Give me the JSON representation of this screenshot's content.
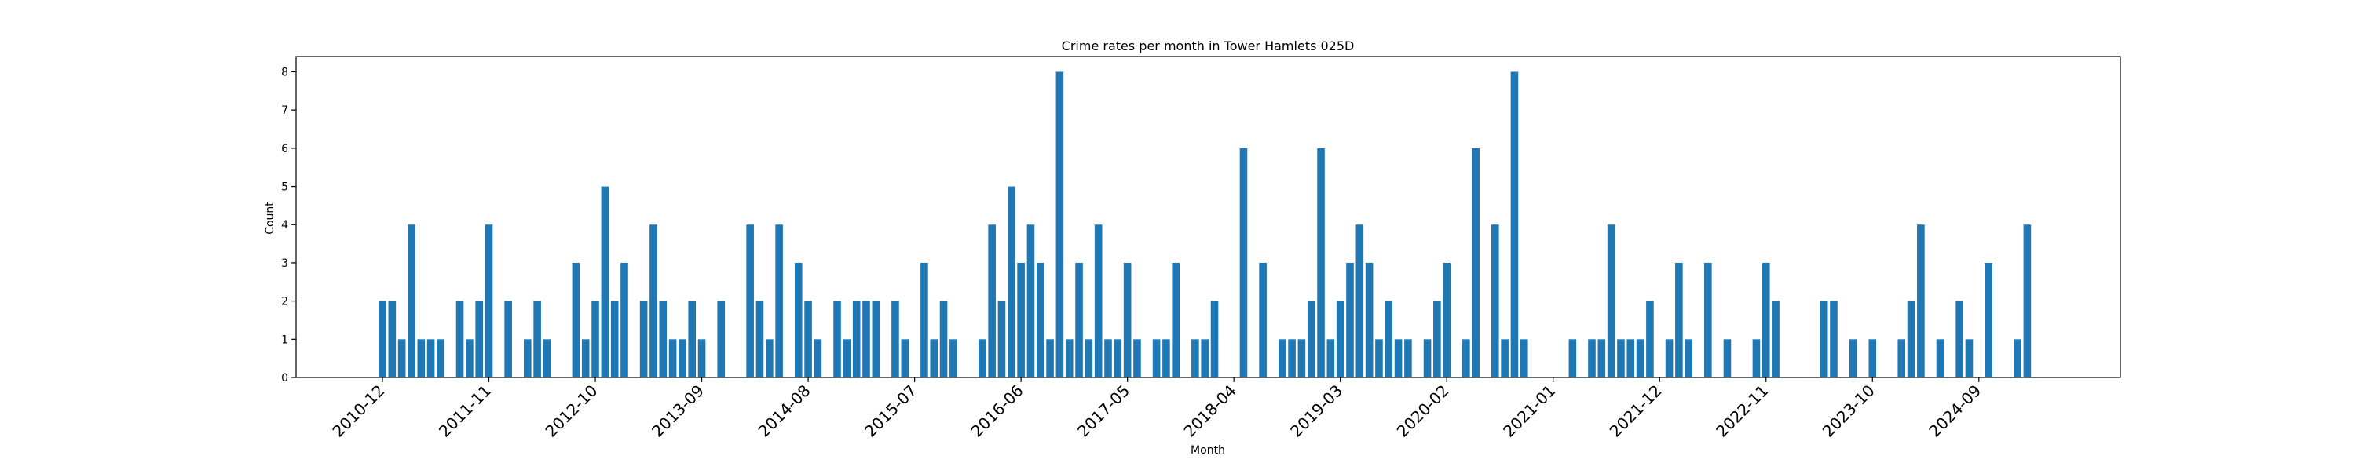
{
  "chart_data": {
    "type": "bar",
    "title": "Crime rates per month in Tower Hamlets 025D",
    "xlabel": "Month",
    "ylabel": "Count",
    "ylim": [
      0,
      8.4
    ],
    "yticks": [
      0,
      1,
      2,
      3,
      4,
      5,
      6,
      7,
      8
    ],
    "bar_color": "#1f77b4",
    "xtick_labels": [
      "2010-12",
      "2011-11",
      "2012-10",
      "2013-09",
      "2014-08",
      "2015-07",
      "2016-06",
      "2017-05",
      "2018-04",
      "2019-03",
      "2020-02",
      "2021-01",
      "2021-12",
      "2022-11",
      "2023-10",
      "2024-09"
    ],
    "grid": false,
    "categories": [
      "2010-12",
      "2011-01",
      "2011-02",
      "2011-03",
      "2011-04",
      "2011-05",
      "2011-06",
      "2011-07",
      "2011-08",
      "2011-09",
      "2011-10",
      "2011-11",
      "2011-12",
      "2012-01",
      "2012-02",
      "2012-03",
      "2012-04",
      "2012-05",
      "2012-06",
      "2012-07",
      "2012-08",
      "2012-09",
      "2012-10",
      "2012-11",
      "2012-12",
      "2013-01",
      "2013-02",
      "2013-03",
      "2013-04",
      "2013-05",
      "2013-06",
      "2013-07",
      "2013-08",
      "2013-09",
      "2013-10",
      "2013-11",
      "2013-12",
      "2014-01",
      "2014-02",
      "2014-03",
      "2014-04",
      "2014-05",
      "2014-06",
      "2014-07",
      "2014-08",
      "2014-09",
      "2014-10",
      "2014-11",
      "2014-12",
      "2015-01",
      "2015-02",
      "2015-03",
      "2015-04",
      "2015-05",
      "2015-06",
      "2015-07",
      "2015-08",
      "2015-09",
      "2015-10",
      "2015-11",
      "2015-12",
      "2016-01",
      "2016-02",
      "2016-03",
      "2016-04",
      "2016-05",
      "2016-06",
      "2016-07",
      "2016-08",
      "2016-09",
      "2016-10",
      "2016-11",
      "2016-12",
      "2017-01",
      "2017-02",
      "2017-03",
      "2017-04",
      "2017-05",
      "2017-06",
      "2017-07",
      "2017-08",
      "2017-09",
      "2017-10",
      "2017-11",
      "2017-12",
      "2018-01",
      "2018-02",
      "2018-03",
      "2018-04",
      "2018-05",
      "2018-06",
      "2018-07",
      "2018-08",
      "2018-09",
      "2018-10",
      "2018-11",
      "2018-12",
      "2019-01",
      "2019-02",
      "2019-03",
      "2019-04",
      "2019-05",
      "2019-06",
      "2019-07",
      "2019-08",
      "2019-09",
      "2019-10",
      "2019-11",
      "2019-12",
      "2020-01",
      "2020-02",
      "2020-03",
      "2020-04",
      "2020-05",
      "2020-06",
      "2020-07",
      "2020-08",
      "2020-09",
      "2020-10",
      "2020-11",
      "2020-12",
      "2021-01",
      "2021-02",
      "2021-03",
      "2021-04",
      "2021-05",
      "2021-06",
      "2021-07",
      "2021-08",
      "2021-09",
      "2021-10",
      "2021-11",
      "2021-12",
      "2022-01",
      "2022-02",
      "2022-03",
      "2022-04",
      "2022-05",
      "2022-06",
      "2022-07",
      "2022-08",
      "2022-09",
      "2022-10",
      "2022-11",
      "2022-12",
      "2023-01",
      "2023-02",
      "2023-03",
      "2023-04",
      "2023-05",
      "2023-06",
      "2023-07",
      "2023-08",
      "2023-09",
      "2023-10",
      "2023-11",
      "2023-12",
      "2024-01",
      "2024-02",
      "2024-03",
      "2024-04",
      "2024-05",
      "2024-06",
      "2024-07",
      "2024-08",
      "2024-09",
      "2024-10",
      "2024-11",
      "2024-12",
      "2025-01",
      "2025-02"
    ],
    "values": [
      2,
      2,
      1,
      4,
      1,
      1,
      1,
      0,
      2,
      1,
      2,
      4,
      0,
      2,
      0,
      1,
      2,
      1,
      0,
      0,
      3,
      1,
      2,
      5,
      2,
      3,
      0,
      2,
      4,
      2,
      1,
      1,
      2,
      1,
      0,
      2,
      0,
      0,
      4,
      2,
      1,
      4,
      0,
      3,
      2,
      1,
      0,
      2,
      1,
      2,
      2,
      2,
      0,
      2,
      1,
      0,
      3,
      1,
      2,
      1,
      0,
      0,
      1,
      4,
      2,
      5,
      3,
      4,
      3,
      1,
      8,
      1,
      3,
      1,
      4,
      1,
      1,
      3,
      1,
      0,
      1,
      1,
      3,
      0,
      1,
      1,
      2,
      0,
      0,
      6,
      0,
      3,
      0,
      1,
      1,
      1,
      2,
      6,
      1,
      2,
      3,
      4,
      3,
      1,
      2,
      1,
      1,
      0,
      1,
      2,
      3,
      0,
      1,
      6,
      0,
      4,
      1,
      8,
      1,
      0,
      0,
      0,
      0,
      1,
      0,
      1,
      1,
      4,
      1,
      1,
      1,
      2,
      0,
      1,
      3,
      1,
      0,
      3,
      0,
      1,
      0,
      0,
      1,
      3,
      2,
      0,
      0,
      0,
      0,
      2,
      2,
      0,
      1,
      0,
      1,
      0,
      0,
      1,
      2,
      4,
      0,
      1,
      0,
      2,
      1,
      0,
      3,
      0,
      0,
      1,
      4
    ]
  }
}
